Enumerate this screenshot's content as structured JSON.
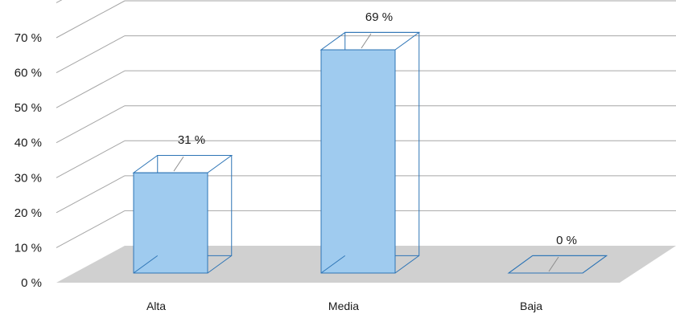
{
  "chart_data": {
    "type": "bar",
    "variant": "3d-column",
    "title": "",
    "xlabel": "",
    "ylabel": "",
    "categories": [
      "Alta",
      "Media",
      "Baja"
    ],
    "values": [
      31,
      69,
      0
    ],
    "data_labels": [
      "31 %",
      "69 %",
      "0 %"
    ],
    "ylim": [
      0,
      70
    ],
    "y_ticks": [
      0,
      10,
      20,
      30,
      40,
      50,
      60,
      70
    ],
    "y_tick_labels": [
      "0 %",
      "10 %",
      "20 %",
      "30 %",
      "40 %",
      "50 %",
      "60 %",
      "70 %"
    ],
    "grid": true,
    "legend": "none",
    "colors": {
      "bar_fill": "#9fcbef",
      "bar_stroke": "#2e75b6",
      "floor": "#d0d0d0",
      "grid": "#a6a6a6",
      "leader": "#8c8c8c"
    }
  }
}
